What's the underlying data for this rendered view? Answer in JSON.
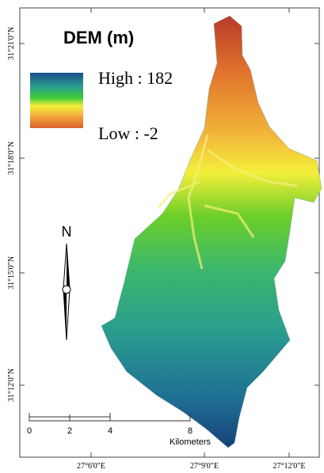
{
  "title": "DEM  (m)",
  "legend": {
    "high": "High : 182",
    "low": "Low :   -2"
  },
  "north": "N",
  "scale_bar": {
    "labels": [
      "0",
      "2",
      "4",
      "8"
    ],
    "unit": "Kilometers"
  },
  "latitude_labels": [
    "31°21'0\"N",
    "31°18'0\"N",
    "31°15'0\"N",
    "31°12'0\"N"
  ],
  "longitude_labels": [
    "27°6'0\"E",
    "27°9'0\"E",
    "27°12'0\"E"
  ]
}
